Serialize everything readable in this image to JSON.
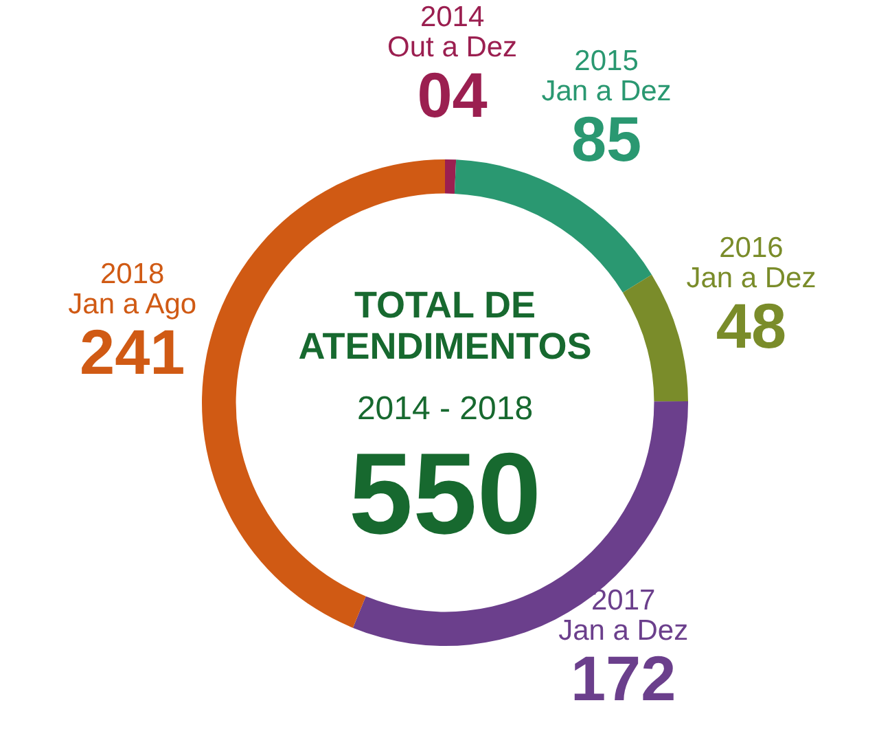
{
  "chart_data": {
    "type": "donut",
    "title": "TOTAL DE\nATENDIMENTOS",
    "subtitle": "2014 - 2018",
    "annotations": [
      "550"
    ],
    "categories": [
      "2014\nOut a Dez",
      "2015\nJan a Dez",
      "2016\nJan a Dez",
      "2017\nJan a Dez",
      "2018\nJan a Ago"
    ],
    "values": [
      4,
      85,
      48,
      172,
      241
    ],
    "value_labels": [
      "04",
      "85",
      "48",
      "172",
      "241"
    ],
    "colors": [
      "#9b1f50",
      "#2a9871",
      "#7a8c2a",
      "#6b3f8c",
      "#d05a14"
    ],
    "legend": false
  }
}
